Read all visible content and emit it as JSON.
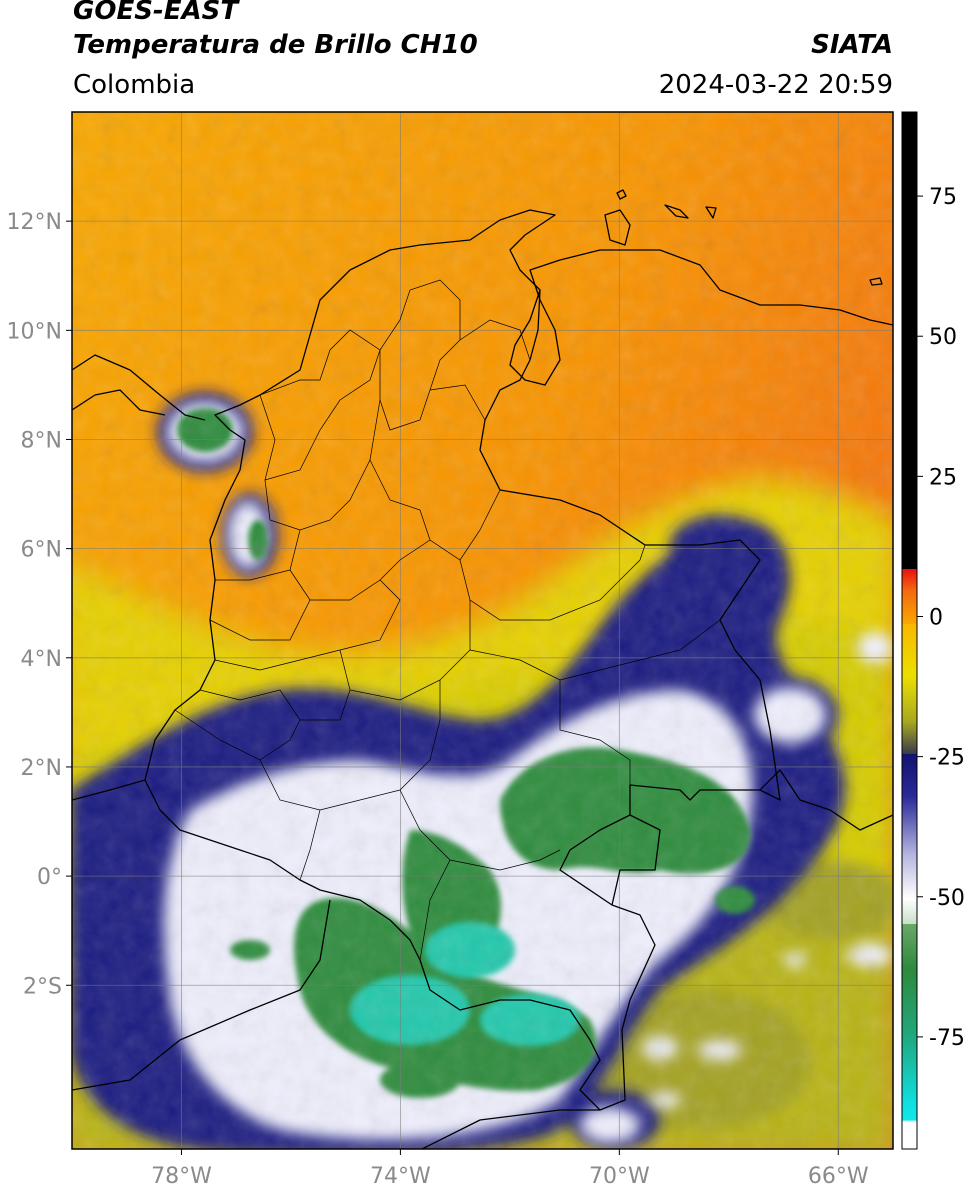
{
  "header": {
    "satellite": "GOES-EAST",
    "product": "Temperatura de Brillo CH10",
    "agency": "SIATA",
    "region": "Colombia",
    "datetime": "2024-03-22 20:59"
  },
  "map": {
    "lon_ticks": [
      {
        "value": -78,
        "label": "78°W"
      },
      {
        "value": -74,
        "label": "74°W"
      },
      {
        "value": -70,
        "label": "70°W"
      },
      {
        "value": -66,
        "label": "66°W"
      }
    ],
    "lat_ticks": [
      {
        "value": 12,
        "label": "12°N"
      },
      {
        "value": 10,
        "label": "10°N"
      },
      {
        "value": 8,
        "label": "8°N"
      },
      {
        "value": 6,
        "label": "6°N"
      },
      {
        "value": 4,
        "label": "4°N"
      },
      {
        "value": 2,
        "label": "2°N"
      },
      {
        "value": 0,
        "label": "0°"
      },
      {
        "value": -2,
        "label": "2°S"
      }
    ],
    "lon_range": [
      -80,
      -65
    ],
    "lat_range": [
      -5,
      14
    ],
    "gridlines": true,
    "colors": {
      "warm": "#f7a000",
      "hot": "#f57a10",
      "mid": "#d8c800",
      "olive": "#a8a820",
      "navy": "#1a1a7a",
      "white": "#f4f4ff",
      "green": "#2e8a3c",
      "teal": "#1fc8b0",
      "border": "#000000"
    }
  },
  "colorbar": {
    "ticks": [
      {
        "value": 75,
        "label": "75"
      },
      {
        "value": 50,
        "label": "50"
      },
      {
        "value": 25,
        "label": "25"
      },
      {
        "value": 0,
        "label": "0"
      },
      {
        "value": -25,
        "label": "-25"
      },
      {
        "value": -50,
        "label": "-50"
      },
      {
        "value": -75,
        "label": "-75"
      }
    ],
    "range": [
      -95,
      90
    ]
  }
}
